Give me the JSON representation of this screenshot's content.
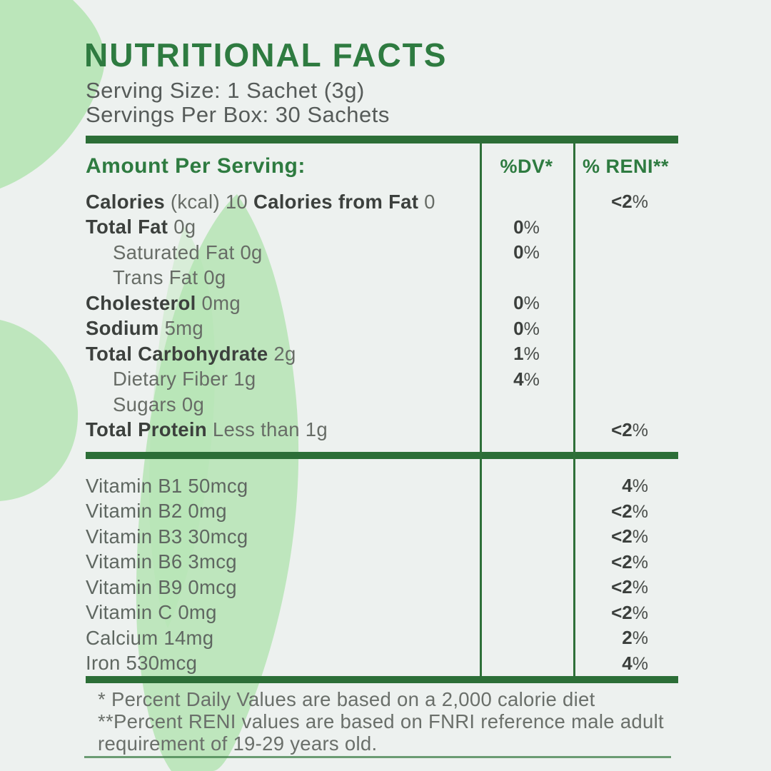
{
  "colors": {
    "accent_green": "#2e7b40",
    "bar_green": "#2c6e37",
    "leaf_green": "#b2e4b0",
    "paper": "#edf1ef",
    "text_dark": "#3c403d",
    "text_gray": "#676c66"
  },
  "header": {
    "title": "NUTRITIONAL FACTS",
    "serving_size": "Serving Size: 1 Sachet (3g)",
    "servings_per_box": "Servings Per Box: 30 Sachets"
  },
  "table": {
    "columns": {
      "amount": "Amount Per Serving:",
      "dv": "%DV*",
      "reni": "% RENI**"
    },
    "rows": [
      {
        "parts": [
          {
            "text": "Calories",
            "bold": true
          },
          {
            "text": " (kcal) 10 ",
            "bold": false
          },
          {
            "text": "Calories from Fat",
            "bold": true
          },
          {
            "text": " 0",
            "bold": false
          }
        ],
        "indent": false,
        "dv": "",
        "reni": "<2%"
      },
      {
        "parts": [
          {
            "text": "Total Fat",
            "bold": true
          },
          {
            "text": " 0g",
            "bold": false
          }
        ],
        "indent": false,
        "dv": "0%",
        "reni": ""
      },
      {
        "parts": [
          {
            "text": "Saturated Fat 0g",
            "bold": false
          }
        ],
        "indent": true,
        "dv": "0%",
        "reni": ""
      },
      {
        "parts": [
          {
            "text": "Trans Fat 0g",
            "bold": false
          }
        ],
        "indent": true,
        "dv": "",
        "reni": ""
      },
      {
        "parts": [
          {
            "text": "Cholesterol",
            "bold": true
          },
          {
            "text": " 0mg",
            "bold": false
          }
        ],
        "indent": false,
        "dv": "0%",
        "reni": ""
      },
      {
        "parts": [
          {
            "text": "Sodium",
            "bold": true
          },
          {
            "text": " 5mg",
            "bold": false
          }
        ],
        "indent": false,
        "dv": "0%",
        "reni": ""
      },
      {
        "parts": [
          {
            "text": "Total Carbohydrate",
            "bold": true
          },
          {
            "text": " 2g",
            "bold": false
          }
        ],
        "indent": false,
        "dv": "1%",
        "reni": ""
      },
      {
        "parts": [
          {
            "text": "Dietary Fiber 1g",
            "bold": false
          }
        ],
        "indent": true,
        "dv": "4%",
        "reni": ""
      },
      {
        "parts": [
          {
            "text": "Sugars 0g",
            "bold": false
          }
        ],
        "indent": true,
        "dv": "",
        "reni": ""
      },
      {
        "parts": [
          {
            "text": "Total Protein",
            "bold": true
          },
          {
            "text": " Less than 1g",
            "bold": false
          }
        ],
        "indent": false,
        "dv": "",
        "reni": "<2%"
      }
    ],
    "micronutrients": [
      {
        "label": "Vitamin B1 50mcg",
        "reni": "4%"
      },
      {
        "label": "Vitamin B2 0mg",
        "reni": "<2%"
      },
      {
        "label": "Vitamin B3 30mcg",
        "reni": "<2%"
      },
      {
        "label": "Vitamin B6 3mcg",
        "reni": "<2%"
      },
      {
        "label": "Vitamin B9 0mcg",
        "reni": "<2%"
      },
      {
        "label": "Vitamin C 0mg",
        "reni": "<2%"
      },
      {
        "label": "Calcium 14mg",
        "reni": "2%"
      },
      {
        "label": "Iron 530mcg",
        "reni": "4%"
      }
    ]
  },
  "footnotes": {
    "lines": [
      "* Percent Daily Values are based on a 2,000 calorie diet",
      "**Percent RENI values are based on FNRI reference male adult",
      "requirement of 19-29 years old."
    ]
  }
}
